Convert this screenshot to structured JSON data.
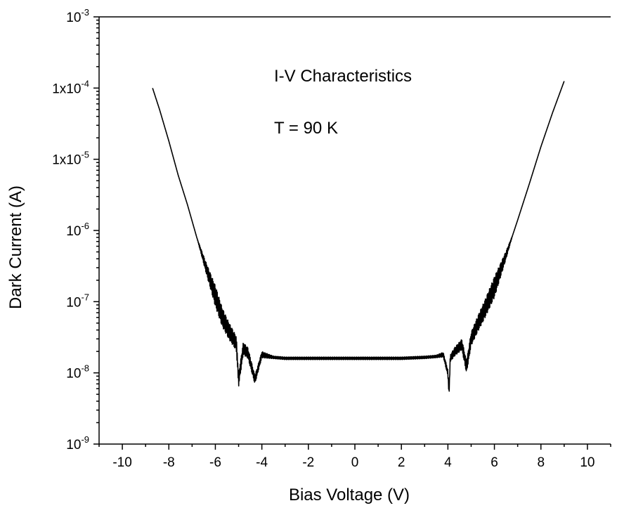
{
  "chart_data": {
    "type": "line",
    "title": "",
    "xlabel": "Bias Voltage (V)",
    "ylabel": "Dark Current (A)",
    "xlim": [
      -11,
      11
    ],
    "ylim": [
      1e-09,
      0.001
    ],
    "yscale": "log",
    "grid": false,
    "legend": "none",
    "annotations": [
      "I-V Characteristics",
      "T = 90 K"
    ],
    "x_ticks": [
      {
        "value": -10,
        "label": "-10"
      },
      {
        "value": -8,
        "label": "-8"
      },
      {
        "value": -6,
        "label": "-6"
      },
      {
        "value": -4,
        "label": "-4"
      },
      {
        "value": -2,
        "label": "-2"
      },
      {
        "value": 0,
        "label": "0"
      },
      {
        "value": 2,
        "label": "2"
      },
      {
        "value": 4,
        "label": "4"
      },
      {
        "value": 6,
        "label": "6"
      },
      {
        "value": 8,
        "label": "8"
      },
      {
        "value": 10,
        "label": "10"
      }
    ],
    "y_ticks": [
      {
        "value": 1e-09,
        "base": "10",
        "exp": "-9"
      },
      {
        "value": 1e-08,
        "base": "10",
        "exp": "-8"
      },
      {
        "value": 1e-07,
        "base": "10",
        "exp": "-7"
      },
      {
        "value": 1e-06,
        "base": "10",
        "exp": "-6"
      },
      {
        "value": 1e-05,
        "base": "1x10",
        "exp": "-5"
      },
      {
        "value": 0.0001,
        "base": "1x10",
        "exp": "-4"
      },
      {
        "value": 0.001,
        "base": "10",
        "exp": "-3"
      }
    ],
    "series": [
      {
        "x": [
          -8.7,
          -8.4,
          -8.0,
          -7.6,
          -7.2,
          -6.8,
          -6.4,
          -6.0,
          -5.7,
          -5.4,
          -5.1,
          -5.0,
          -4.8,
          -4.6,
          -4.3,
          -4.0,
          -3.5,
          -3.0,
          -2.0,
          -1.0,
          0.0,
          1.0,
          2.0,
          3.0,
          3.5,
          3.8,
          4.0,
          4.05,
          4.1,
          4.3,
          4.6,
          4.8,
          5.0,
          5.3,
          5.6,
          6.0,
          6.5,
          7.0,
          7.5,
          8.0,
          8.5,
          9.0
        ],
        "y": [
          0.0001,
          5e-05,
          1.8e-05,
          6e-06,
          2.3e-06,
          8e-07,
          3e-07,
          1.2e-07,
          6e-08,
          3.8e-08,
          2.6e-08,
          8e-09,
          2.2e-08,
          1.9e-08,
          8e-09,
          1.8e-08,
          1.65e-08,
          1.6e-08,
          1.6e-08,
          1.6e-08,
          1.6e-08,
          1.6e-08,
          1.6e-08,
          1.65e-08,
          1.7e-08,
          1.8e-08,
          1e-08,
          5e-09,
          1.6e-08,
          2e-08,
          2.5e-08,
          1.2e-08,
          3e-08,
          5e-08,
          8e-08,
          1.6e-07,
          4.5e-07,
          1.4e-06,
          4.5e-06,
          1.5e-05,
          4.5e-05,
          0.000125
        ]
      }
    ]
  }
}
